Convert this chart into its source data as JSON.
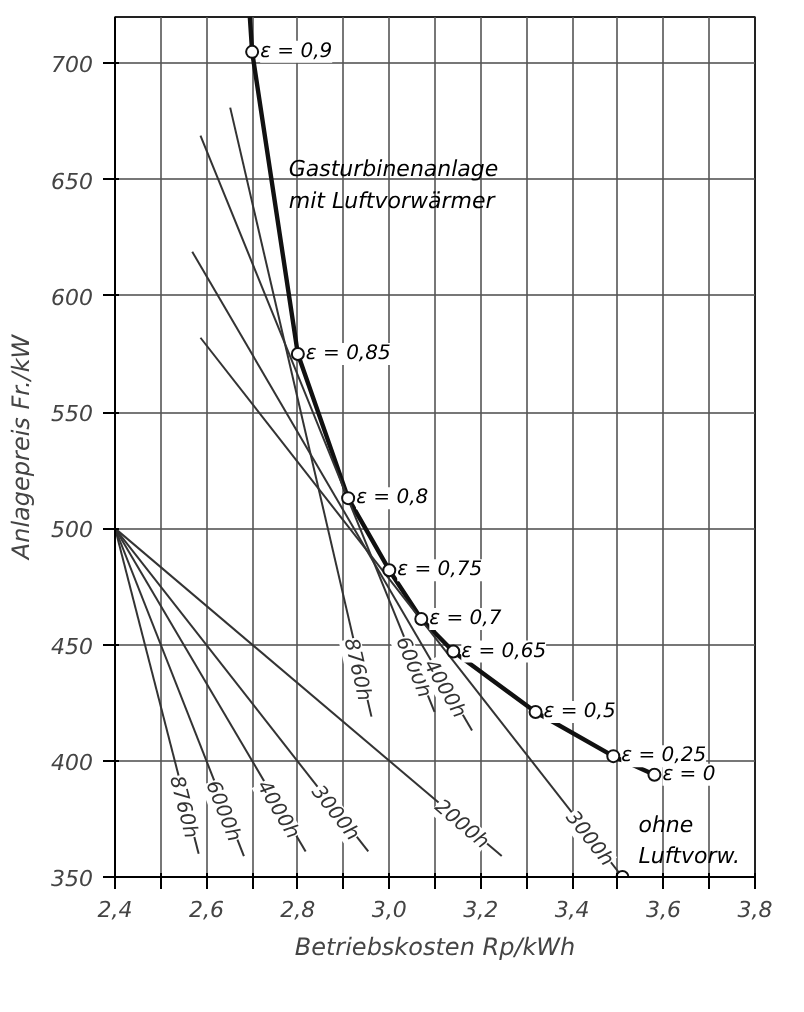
{
  "chart_data": {
    "type": "line",
    "xlabel": "Betriebskosten Rp/kWh",
    "ylabel": "Anlagepreis Fr./kW",
    "xlim": [
      2.4,
      3.8
    ],
    "ylim": [
      350,
      720
    ],
    "xticks": [
      {
        "value": 2.4,
        "label": "2,4"
      },
      {
        "value": 2.5,
        "label": null
      },
      {
        "value": 2.6,
        "label": "2,6"
      },
      {
        "value": 2.7,
        "label": null
      },
      {
        "value": 2.8,
        "label": "2,8"
      },
      {
        "value": 2.9,
        "label": null
      },
      {
        "value": 3.0,
        "label": "3,0"
      },
      {
        "value": 3.1,
        "label": null
      },
      {
        "value": 3.2,
        "label": "3,2"
      },
      {
        "value": 3.3,
        "label": null
      },
      {
        "value": 3.4,
        "label": "3,4"
      },
      {
        "value": 3.5,
        "label": null
      },
      {
        "value": 3.6,
        "label": "3,6"
      },
      {
        "value": 3.7,
        "label": null
      },
      {
        "value": 3.8,
        "label": "3,8"
      }
    ],
    "yticks": [
      350,
      400,
      450,
      500,
      550,
      600,
      650,
      700
    ],
    "grid": true,
    "series": [
      {
        "color": "#111111",
        "x": [
          2.695,
          2.7,
          2.8,
          2.91,
          3.0,
          3.07,
          3.14,
          3.32,
          3.49,
          3.58
        ],
        "values": [
          720,
          705,
          575,
          513,
          482,
          461,
          447,
          421,
          402,
          394
        ]
      },
      {
        "name": "8760h",
        "color": "#333333",
        "x": [
          2.4,
          2.583
        ],
        "values": [
          500,
          360
        ]
      },
      {
        "name": "6000h",
        "color": "#333333",
        "x": [
          2.4,
          2.682
        ],
        "values": [
          500,
          359
        ]
      },
      {
        "name": "4000h",
        "color": "#333333",
        "x": [
          2.4,
          2.817
        ],
        "values": [
          500,
          361
        ]
      },
      {
        "name": "3000h",
        "color": "#333333",
        "x": [
          2.4,
          2.954
        ],
        "values": [
          500,
          361
        ]
      },
      {
        "name": "2000h",
        "color": "#333333",
        "x": [
          2.4,
          3.246
        ],
        "values": [
          500,
          359
        ]
      },
      {
        "name": "8760h",
        "color": "#333333",
        "x": [
          2.652,
          2.961
        ],
        "values": [
          681,
          419
        ]
      },
      {
        "name": "6000h",
        "color": "#333333",
        "x": [
          2.587,
          3.099
        ],
        "values": [
          669,
          421
        ]
      },
      {
        "name": "4000h",
        "color": "#333333",
        "x": [
          2.569,
          3.181
        ],
        "values": [
          619,
          413
        ]
      },
      {
        "name": "3000h",
        "color": "#333333",
        "x": [
          2.587,
          3.51
        ],
        "values": [
          582,
          350
        ]
      },
      {
        "type": "scatter",
        "color": "#111111",
        "x": [
          2.7,
          2.8,
          2.91,
          3.0,
          3.07,
          3.14,
          3.32,
          3.49,
          3.58,
          3.51
        ],
        "values": [
          705,
          575,
          513,
          482,
          461,
          447,
          421,
          402,
          394,
          350
        ]
      }
    ],
    "annotations": [
      {
        "text": "ε = 0,9",
        "x": 2.7,
        "y": 705
      },
      {
        "text": "ε = 0,85",
        "x": 2.8,
        "y": 575
      },
      {
        "text": "ε = 0,8",
        "x": 2.91,
        "y": 513
      },
      {
        "text": "ε = 0,75",
        "x": 3.0,
        "y": 482
      },
      {
        "text": "ε = 0,7",
        "x": 3.07,
        "y": 461
      },
      {
        "text": "ε = 0,65",
        "x": 3.14,
        "y": 447
      },
      {
        "text": "ε = 0,5",
        "x": 3.32,
        "y": 421
      },
      {
        "text": "ε = 0,25",
        "x": 3.49,
        "y": 402
      },
      {
        "text": "ε = 0",
        "x": 3.58,
        "y": 394
      },
      {
        "text": "Gasturbinenanlage\nmit Luftvorwärmer",
        "x": 2.745,
        "y": 632
      },
      {
        "text": "ohne\nLuftvorw.",
        "x": 3.51,
        "y": 350
      }
    ]
  }
}
